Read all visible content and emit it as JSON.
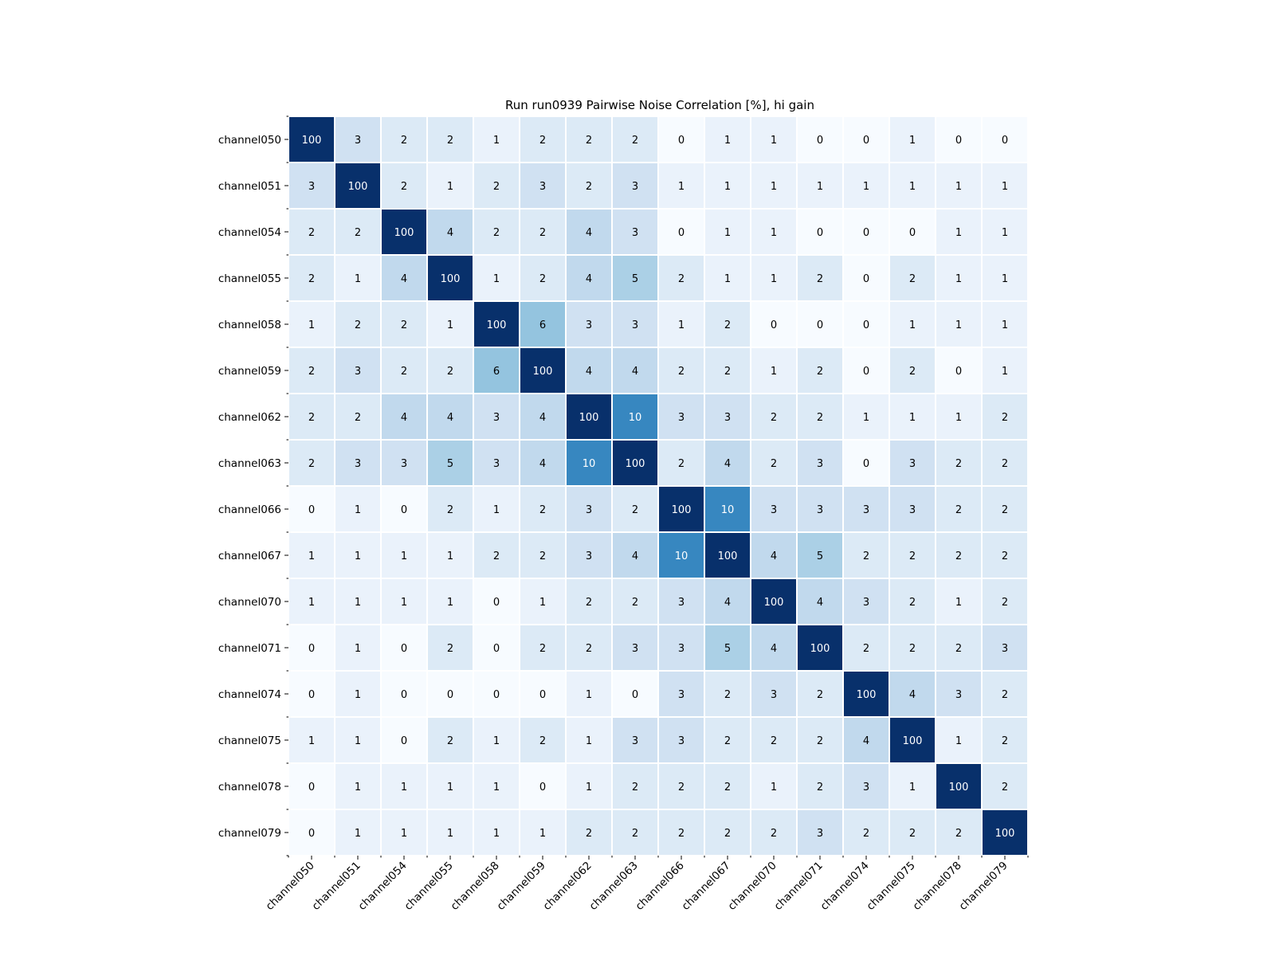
{
  "chart_data": {
    "type": "heatmap",
    "title": "Run run0939 Pairwise Noise Correlation [%], hi gain",
    "xlabel": "",
    "ylabel": "",
    "labels": [
      "channel050",
      "channel051",
      "channel054",
      "channel055",
      "channel058",
      "channel059",
      "channel062",
      "channel063",
      "channel066",
      "channel067",
      "channel070",
      "channel071",
      "channel074",
      "channel075",
      "channel078",
      "channel079"
    ],
    "matrix": [
      [
        100,
        3,
        2,
        2,
        1,
        2,
        2,
        2,
        0,
        1,
        1,
        0,
        0,
        1,
        0,
        0
      ],
      [
        3,
        100,
        2,
        1,
        2,
        3,
        2,
        3,
        1,
        1,
        1,
        1,
        1,
        1,
        1,
        1
      ],
      [
        2,
        2,
        100,
        4,
        2,
        2,
        4,
        3,
        0,
        1,
        1,
        0,
        0,
        0,
        1,
        1
      ],
      [
        2,
        1,
        4,
        100,
        1,
        2,
        4,
        5,
        2,
        1,
        1,
        2,
        0,
        2,
        1,
        1
      ],
      [
        1,
        2,
        2,
        1,
        100,
        6,
        3,
        3,
        1,
        2,
        0,
        0,
        0,
        1,
        1,
        1
      ],
      [
        2,
        3,
        2,
        2,
        6,
        100,
        4,
        4,
        2,
        2,
        1,
        2,
        0,
        2,
        0,
        1
      ],
      [
        2,
        2,
        4,
        4,
        3,
        4,
        100,
        10,
        3,
        3,
        2,
        2,
        1,
        1,
        1,
        2
      ],
      [
        2,
        3,
        3,
        5,
        3,
        4,
        10,
        100,
        2,
        4,
        2,
        3,
        0,
        3,
        2,
        2
      ],
      [
        0,
        1,
        0,
        2,
        1,
        2,
        3,
        2,
        100,
        10,
        3,
        3,
        3,
        3,
        2,
        2
      ],
      [
        1,
        1,
        1,
        1,
        2,
        2,
        3,
        4,
        10,
        100,
        4,
        5,
        2,
        2,
        2,
        2
      ],
      [
        1,
        1,
        1,
        1,
        0,
        1,
        2,
        2,
        3,
        4,
        100,
        4,
        3,
        2,
        1,
        2
      ],
      [
        0,
        1,
        0,
        2,
        0,
        2,
        2,
        3,
        3,
        5,
        4,
        100,
        2,
        2,
        2,
        3
      ],
      [
        0,
        1,
        0,
        0,
        0,
        0,
        1,
        0,
        3,
        2,
        3,
        2,
        100,
        4,
        3,
        2
      ],
      [
        1,
        1,
        0,
        2,
        1,
        2,
        1,
        3,
        3,
        2,
        2,
        2,
        4,
        100,
        1,
        2
      ],
      [
        0,
        1,
        1,
        1,
        1,
        0,
        1,
        2,
        2,
        2,
        1,
        2,
        3,
        1,
        100,
        2
      ],
      [
        0,
        1,
        1,
        1,
        1,
        1,
        2,
        2,
        2,
        2,
        2,
        3,
        2,
        2,
        2,
        100
      ]
    ],
    "colormap": "Blues",
    "colormap_stops": [
      "#f7fbff",
      "#deebf7",
      "#c6dbef",
      "#9ecae1",
      "#6baed6",
      "#4292c6",
      "#2171b5",
      "#08519c",
      "#08306b"
    ],
    "color_range": [
      0,
      15
    ],
    "cell_border_color": "#ffffff",
    "text_color_light": "#ffffff",
    "text_color_dark": "#000000",
    "colorbar": false,
    "grid": false
  }
}
